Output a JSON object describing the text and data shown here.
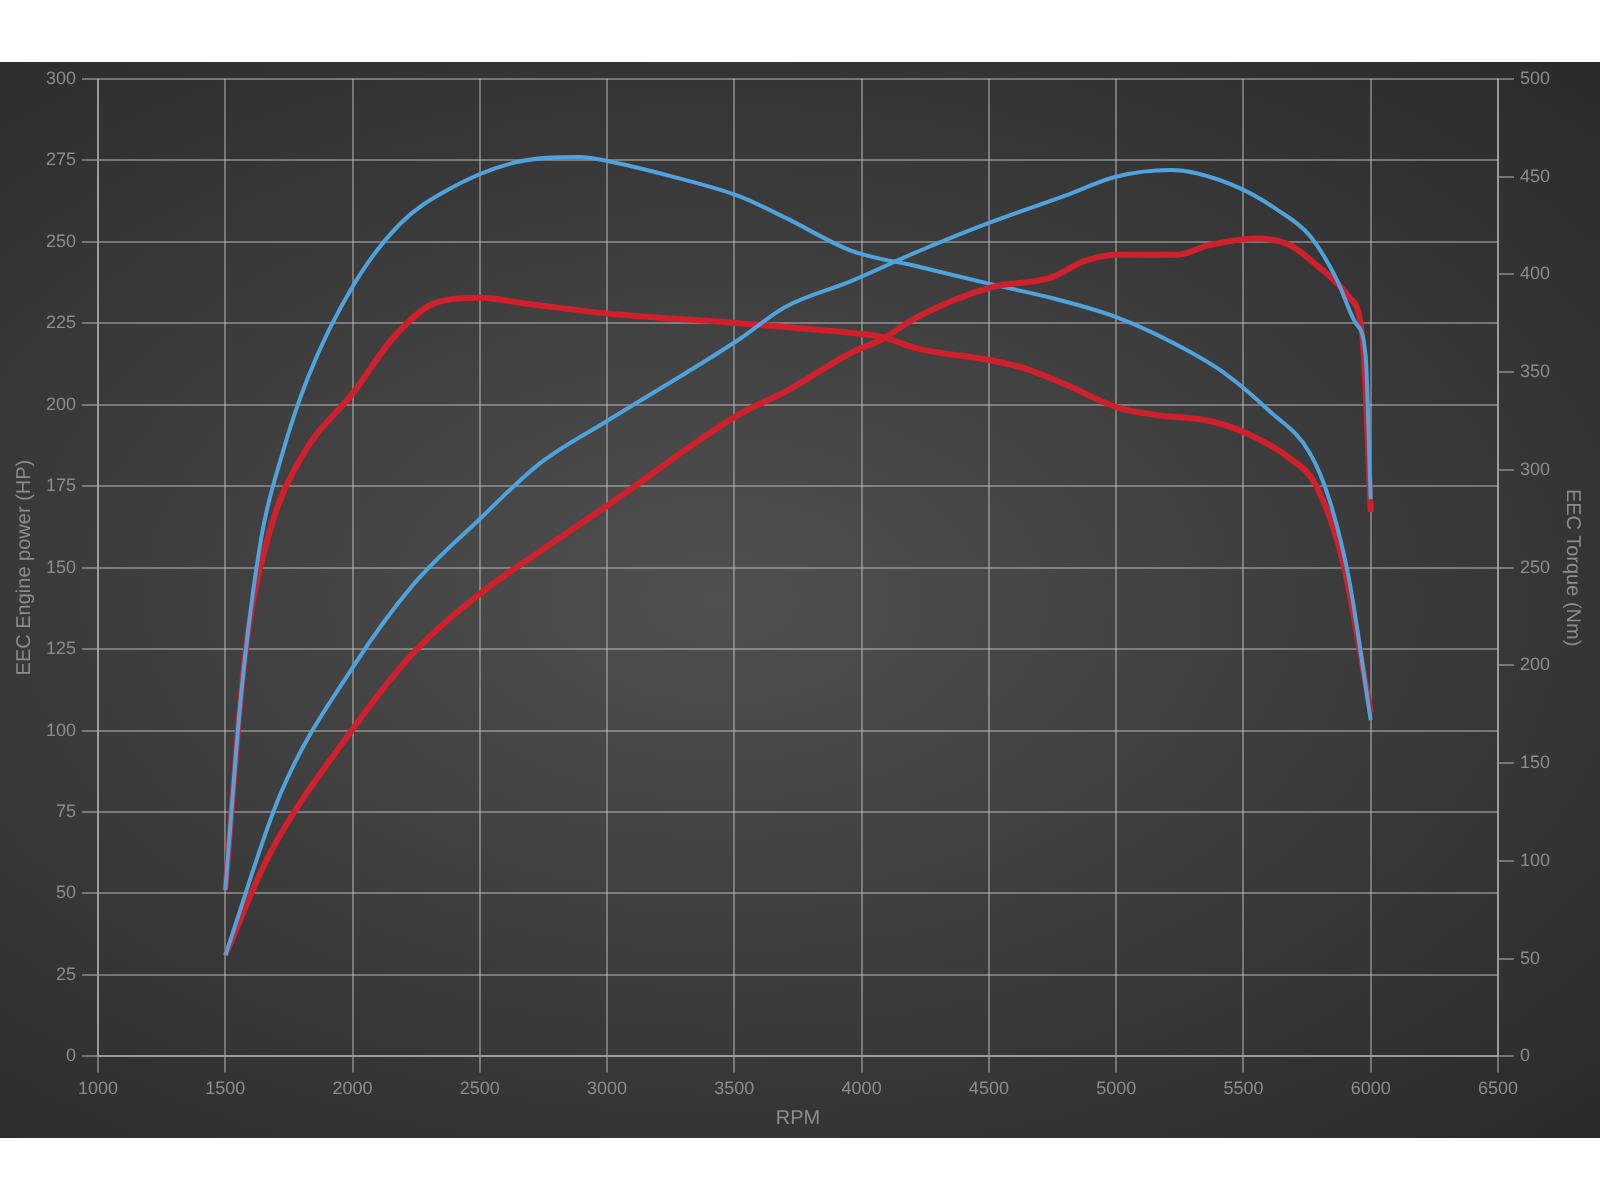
{
  "chart_data": {
    "type": "line",
    "xlabel": "RPM",
    "ylabel": "EEC Engine power (HP)",
    "y2label": "EEC Torque (Nm)",
    "xlim": [
      1000,
      6500
    ],
    "xticks": [
      1000,
      1500,
      2000,
      2500,
      3000,
      3500,
      4000,
      4500,
      5000,
      5500,
      6000,
      6500
    ],
    "ylim": [
      0,
      300
    ],
    "yticks": [
      0,
      25,
      50,
      75,
      100,
      125,
      150,
      175,
      200,
      225,
      250,
      275,
      300
    ],
    "y2lim": [
      0,
      500
    ],
    "y2ticks": [
      0,
      50,
      100,
      150,
      200,
      250,
      300,
      350,
      400,
      450,
      500
    ],
    "grid": true,
    "legend": false,
    "marker": "none",
    "line_style": "solid",
    "series": [
      {
        "color": "#4fa3dc",
        "axis": "y",
        "x": [
          1500,
          1719,
          2006,
          2241,
          2501,
          2736,
          3000,
          3518,
          3700,
          3961,
          4221,
          4508,
          4795,
          5003,
          5212,
          5316,
          5498,
          5629,
          5759,
          5863,
          5941,
          5980,
          6000
        ],
        "values": [
          31,
          81,
          120,
          145,
          165,
          182,
          195,
          220,
          230,
          238,
          247,
          256,
          264,
          270,
          272,
          271,
          266,
          260,
          252,
          239,
          225,
          215,
          171
        ]
      },
      {
        "color": "#d0202c",
        "axis": "y",
        "x": [
          1500,
          1667,
          2006,
          2241,
          2501,
          2736,
          3000,
          3518,
          3700,
          3961,
          4078,
          4221,
          4508,
          4743,
          4874,
          5003,
          5238,
          5368,
          5550,
          5681,
          5785,
          5915,
          5967,
          6000
        ],
        "values": [
          31,
          61,
          101,
          124,
          142,
          155,
          169,
          197,
          204,
          216,
          220,
          227,
          236,
          239,
          244,
          246,
          246,
          249,
          251,
          249,
          243,
          233,
          221,
          167
        ]
      },
      {
        "color": "#4fa3dc",
        "axis": "y2",
        "x": [
          1500,
          1563,
          1641,
          1719,
          1824,
          2006,
          2188,
          2371,
          2632,
          2892,
          3000,
          3257,
          3518,
          3700,
          3961,
          4221,
          4508,
          4743,
          5003,
          5238,
          5420,
          5603,
          5759,
          5837,
          5915,
          6000
        ],
        "values": [
          85,
          186,
          265,
          306,
          347,
          395,
          426,
          443,
          457,
          460,
          458,
          450,
          440,
          429,
          412,
          404,
          395,
          388,
          378,
          364,
          350,
          330,
          309,
          285,
          244,
          172
        ]
      },
      {
        "color": "#d0202c",
        "axis": "y2",
        "x": [
          1500,
          1576,
          1667,
          1797,
          2006,
          2163,
          2319,
          2501,
          2683,
          3000,
          3518,
          3700,
          3961,
          4078,
          4221,
          4508,
          4638,
          4795,
          5003,
          5160,
          5368,
          5524,
          5681,
          5785,
          5889,
          6000
        ],
        "values": [
          85,
          203,
          265,
          306,
          340,
          368,
          385,
          388,
          385,
          380,
          375,
          373,
          370,
          368,
          362,
          356,
          352,
          344,
          332,
          328,
          325,
          318,
          306,
          292,
          254,
          176
        ]
      }
    ]
  }
}
